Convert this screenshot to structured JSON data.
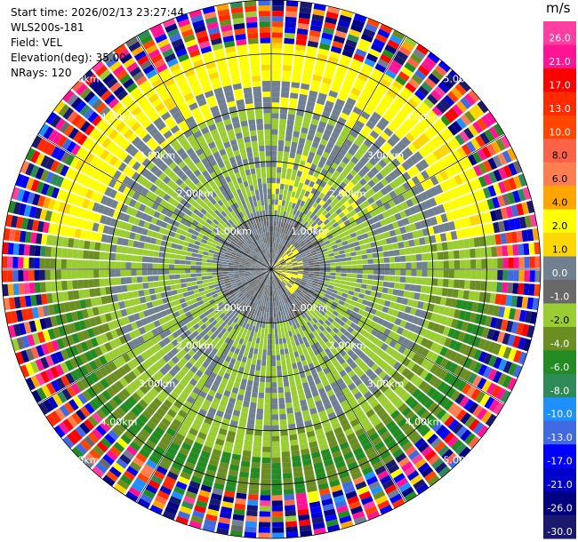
{
  "header": {
    "start_time": "Start time: 2026/02/13 23:27:44",
    "instrument": "WLS200s-181",
    "field": "Field: VEL",
    "elevation": "Elevation(deg): 35.00",
    "nrays": "NRays: 120"
  },
  "colorbar": {
    "unit": "m/s",
    "ticks": [
      "26.0",
      "21.0",
      "17.0",
      "13.0",
      "10.0",
      "8.0",
      "6.0",
      "4.0",
      "2.0",
      "1.0",
      "0.0",
      "-1.0",
      "-2.0",
      "-4.0",
      "-6.0",
      "-8.0",
      "-10.0",
      "-13.0",
      "-17.0",
      "-21.0",
      "-26.0",
      "-30.0"
    ],
    "colors": [
      "#ff3fa0",
      "#ff1493",
      "#ff0000",
      "#ff2a00",
      "#ff4500",
      "#ff6347",
      "#ff7f50",
      "#ffa500",
      "#ffff00",
      "#ffd700",
      "#708090",
      "#696969",
      "#9acd32",
      "#6b8e23",
      "#228b22",
      "#2e8b57",
      "#1e90ff",
      "#4169e1",
      "#0000ff",
      "#0000cd",
      "#000080",
      "#191970"
    ]
  },
  "chart_data": {
    "type": "heatmap",
    "projection": "polar (PPI scan)",
    "nrays": 120,
    "field": "VEL",
    "range_rings_km": [
      1,
      2,
      3,
      4,
      5
    ],
    "ring_labels": [
      "1.00km",
      "2.00km",
      "3.00km",
      "4.00km",
      "5.00km"
    ],
    "max_range_km": 5.0,
    "units": "m/s",
    "value_range": [
      -30.0,
      26.0
    ],
    "spokes": 12,
    "observed_pattern": [
      {
        "range_km": [
          0.0,
          0.6
        ],
        "dominant_velocity_m_s": 0.0
      },
      {
        "range_km": [
          1.0,
          3.0
        ],
        "dominant_velocity_m_s": -2.0
      },
      {
        "range_km": [
          3.0,
          3.5
        ],
        "dominant_velocity_m_s": 0.0
      },
      {
        "range_km": [
          3.5,
          4.2
        ],
        "dominant_velocity_m_s": 3.0,
        "sector": "north"
      },
      {
        "range_km": [
          3.5,
          4.2
        ],
        "dominant_velocity_m_s": -5.0,
        "sector": "south"
      },
      {
        "range_km": [
          4.2,
          5.0
        ],
        "dominant_velocity_m_s": "noisy / mixed"
      }
    ]
  }
}
